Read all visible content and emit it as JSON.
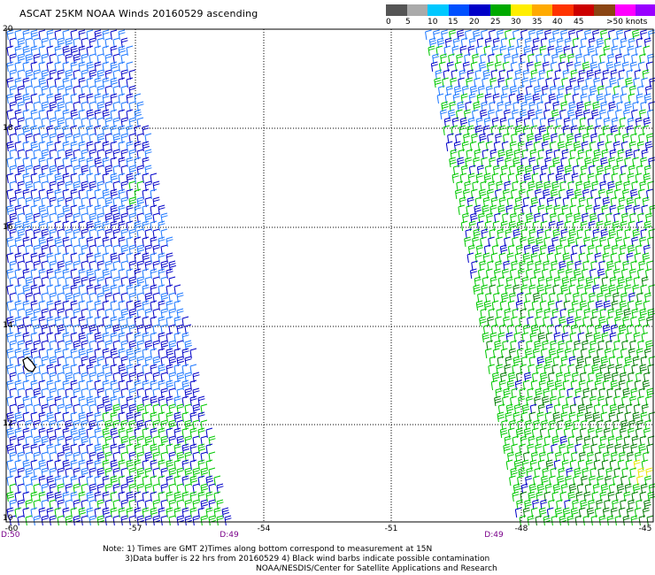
{
  "title": "ASCAT 25KM NOAA Winds 20160529 ascending",
  "speed_scale": {
    "labels": [
      "0",
      "5",
      "10",
      "15",
      "20",
      "25",
      "30",
      "35",
      "40",
      "45",
      ">50 knots"
    ],
    "colors": [
      "#555555",
      "#aaaaaa",
      "#00c8ff",
      "#0050ff",
      "#0000c8",
      "#00aa00",
      "#ffee00",
      "#ffaa00",
      "#ff3300",
      "#cc0000",
      "#8b4513",
      "#ff00ff",
      "#9900ff",
      "#5a0090"
    ]
  },
  "latitude_labels": [
    "20",
    "18",
    "16",
    "14",
    "12",
    "10"
  ],
  "longitude_labels": [
    "-60",
    "-57",
    "-54",
    "-51",
    "-48",
    "-45"
  ],
  "time_labels": [
    "D:50",
    "D:49",
    "D:49"
  ],
  "notes": [
    "Note: 1) Times are GMT 2)Times along bottom correspond to measurement at 15N",
    "3)Data buffer is 22 hrs from 20160529 4) Black wind barbs indicate possible contamination",
    "NOAA/NESDIS/Center for Satellite Applications and Research"
  ],
  "wind_colors": {
    "light_blue": "#1e78ff",
    "dark_blue": "#0000c8",
    "green": "#00c800",
    "dark_green": "#007a00",
    "yellow": "#e8e800",
    "black": "#000000"
  }
}
